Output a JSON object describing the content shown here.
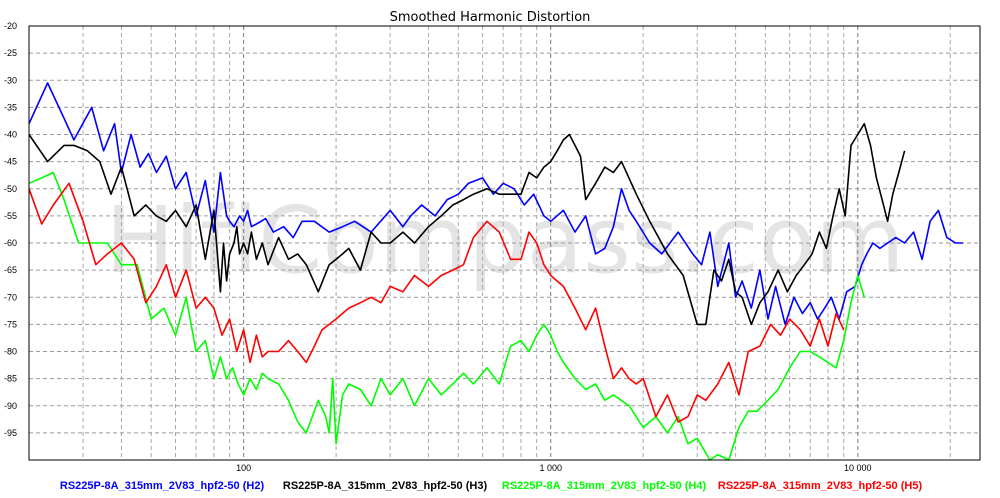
{
  "watermark": "HifiCompass.com",
  "chart_data": {
    "type": "line",
    "title": "Smoothed Harmonic Distortion",
    "xscale": "log",
    "xlim": [
      20,
      25000
    ],
    "ylim": [
      -100,
      -20
    ],
    "grid": true,
    "legend_position": "bottom",
    "x_tick_labels": [
      {
        "value": 100,
        "label": "100"
      },
      {
        "value": 1000,
        "label": "1 000"
      },
      {
        "value": 10000,
        "label": "10 000"
      }
    ],
    "y_tick_labels": [
      {
        "value": -20,
        "label": "-20"
      },
      {
        "value": -25,
        "label": "-25"
      },
      {
        "value": -30,
        "label": "-30"
      },
      {
        "value": -35,
        "label": "-35"
      },
      {
        "value": -40,
        "label": "-40"
      },
      {
        "value": -45,
        "label": "-45"
      },
      {
        "value": -50,
        "label": "-50"
      },
      {
        "value": -55,
        "label": "-55"
      },
      {
        "value": -60,
        "label": "-60"
      },
      {
        "value": -65,
        "label": "-65"
      },
      {
        "value": -70,
        "label": "-70"
      },
      {
        "value": -75,
        "label": "-75"
      },
      {
        "value": -80,
        "label": "-80"
      },
      {
        "value": -85,
        "label": "-85"
      },
      {
        "value": -90,
        "label": "-90"
      },
      {
        "value": -95,
        "label": "-95"
      }
    ],
    "series": [
      {
        "name": "RS225P-8A_315mm_2V83_hpf2-50 (H2)",
        "color": "#0000ff",
        "x": [
          20,
          23,
          26,
          28,
          32,
          35,
          38,
          40,
          43,
          46,
          49,
          52,
          56,
          60,
          65,
          70,
          75,
          80,
          84,
          88,
          90,
          93,
          97,
          100,
          103,
          106,
          110,
          118,
          125,
          135,
          145,
          155,
          170,
          190,
          210,
          230,
          260,
          300,
          330,
          350,
          380,
          420,
          460,
          500,
          540,
          600,
          650,
          700,
          760,
          820,
          880,
          950,
          1000,
          1100,
          1200,
          1300,
          1400,
          1500,
          1600,
          1700,
          1800,
          1900,
          2100,
          2300,
          2600,
          2900,
          3100,
          3300,
          3500,
          3800,
          4000,
          4200,
          4500,
          4800,
          5100,
          5400,
          5800,
          6200,
          6600,
          7000,
          7400,
          7800,
          8200,
          8700,
          9200,
          9800,
          10300,
          10700,
          11200,
          11800,
          12500,
          13300,
          14200,
          15200,
          16200,
          17200,
          18300,
          19500,
          20800,
          22000
        ],
        "y": [
          -38,
          -30.5,
          -37,
          -41,
          -35,
          -43,
          -38,
          -47,
          -40,
          -46,
          -43.5,
          -47,
          -44,
          -50,
          -47,
          -55,
          -48.5,
          -58,
          -47,
          -55,
          -56,
          -57,
          -55,
          -56,
          -54,
          -57,
          -56.5,
          -55.5,
          -58,
          -57,
          -59,
          -56,
          -56,
          -58,
          -57,
          -56,
          -58,
          -54,
          -57,
          -55,
          -53,
          -55,
          -52,
          -51,
          -49,
          -48,
          -51,
          -49,
          -50,
          -53,
          -51,
          -55,
          -56,
          -54,
          -58,
          -55,
          -62,
          -61,
          -57,
          -50,
          -54,
          -56,
          -60,
          -62,
          -58,
          -62,
          -64,
          -58,
          -68,
          -60,
          -70,
          -67,
          -72,
          -65,
          -74,
          -68,
          -75,
          -70,
          -73,
          -71,
          -74,
          -72,
          -70,
          -74,
          -69,
          -68,
          -64,
          -62,
          -60,
          -61,
          -60,
          -59,
          -60,
          -58,
          -63,
          -56,
          -54,
          -59,
          -60,
          -60
        ],
        "label_x": 162,
        "label_anchor": "middle"
      },
      {
        "name": "RS225P-8A_315mm_2V83_hpf2-50 (H3)",
        "color": "#000000",
        "x": [
          20,
          23,
          26,
          28,
          31,
          34,
          37,
          40,
          44,
          48,
          52,
          56,
          60,
          65,
          70,
          75,
          80,
          84,
          86,
          88,
          90,
          93,
          95,
          97,
          100,
          103,
          106,
          110,
          115,
          120,
          130,
          140,
          150,
          160,
          175,
          190,
          200,
          210,
          220,
          240,
          260,
          280,
          300,
          330,
          360,
          400,
          440,
          480,
          520,
          560,
          620,
          680,
          740,
          800,
          850,
          900,
          950,
          1000,
          1050,
          1100,
          1150,
          1200,
          1250,
          1300,
          1400,
          1500,
          1600,
          1700,
          1900,
          2100,
          2400,
          2700,
          3000,
          3200,
          3400,
          3600,
          3800,
          4000,
          4200,
          4500,
          4800,
          5100,
          5500,
          5900,
          6300,
          6700,
          7100,
          7500,
          7900,
          8300,
          8700,
          9100,
          9500,
          10000,
          10500,
          11000,
          11500,
          12000,
          12500,
          13000,
          13600,
          14200
        ],
        "y": [
          -40,
          -45,
          -42,
          -42,
          -43,
          -45,
          -51,
          -46,
          -55,
          -53,
          -55,
          -56,
          -54,
          -57,
          -53,
          -63,
          -54,
          -69,
          -60,
          -67,
          -62,
          -60,
          -57,
          -62,
          -60,
          -62,
          -58,
          -63,
          -60,
          -64,
          -59,
          -63,
          -62,
          -64,
          -69,
          -64,
          -63,
          -62,
          -61,
          -65,
          -58,
          -60,
          -60,
          -58,
          -60,
          -57,
          -55,
          -53,
          -52,
          -51,
          -50,
          -51,
          -51,
          -51,
          -47,
          -48,
          -46,
          -45,
          -43,
          -41,
          -40,
          -42,
          -44,
          -52,
          -49,
          -46,
          -47,
          -45,
          -51,
          -56,
          -62,
          -66,
          -75,
          -75,
          -65,
          -67,
          -63,
          -69,
          -70,
          -75,
          -71,
          -69,
          -65,
          -69,
          -66,
          -64,
          -62,
          -58,
          -61,
          -55,
          -50,
          -55,
          -42,
          -40,
          -38,
          -42,
          -48,
          -52,
          -56,
          -51,
          -47,
          -43
        ],
        "label_x": 385,
        "label_anchor": "middle"
      },
      {
        "name": "RS225P-8A_315mm_2V83_hpf2-50 (H4)",
        "color": "#00ff00",
        "x": [
          20,
          22,
          24,
          26,
          29,
          32,
          36,
          40,
          45,
          50,
          55,
          60,
          65,
          70,
          75,
          80,
          84,
          88,
          92,
          96,
          100,
          105,
          110,
          115,
          120,
          130,
          140,
          150,
          160,
          175,
          185,
          190,
          195,
          200,
          210,
          220,
          240,
          260,
          280,
          300,
          330,
          360,
          400,
          440,
          480,
          520,
          560,
          620,
          680,
          740,
          800,
          850,
          900,
          950,
          1000,
          1050,
          1100,
          1200,
          1300,
          1400,
          1500,
          1600,
          1800,
          2000,
          2200,
          2400,
          2600,
          2800,
          3000,
          3300,
          3500,
          3800,
          4100,
          4400,
          4700,
          5100,
          5500,
          6000,
          6500,
          7000,
          7500,
          8000,
          8500,
          9000,
          9500,
          10000,
          10500
        ],
        "y": [
          -49,
          -48,
          -47,
          -52,
          -60,
          -60,
          -60,
          -64,
          -64,
          -74,
          -72,
          -77,
          -70,
          -80,
          -78,
          -85,
          -81,
          -85,
          -83,
          -86,
          -88,
          -85,
          -87,
          -84,
          -85,
          -86,
          -89,
          -93,
          -95,
          -89,
          -92,
          -95,
          -85,
          -97,
          -88,
          -86,
          -87,
          -90,
          -85,
          -88,
          -85,
          -90,
          -85,
          -88,
          -86,
          -84,
          -86,
          -83,
          -86,
          -79,
          -78,
          -80,
          -77,
          -75,
          -77,
          -80,
          -82,
          -85,
          -87,
          -86,
          -89,
          -88,
          -90,
          -94,
          -92,
          -95,
          -92,
          -97,
          -96,
          -100,
          -99,
          -100,
          -94,
          -91,
          -91,
          -89,
          -87,
          -83,
          -80,
          -80,
          -81,
          -82,
          -83,
          -78,
          -71,
          -66,
          -70
        ],
        "label_x": 604,
        "label_anchor": "middle"
      },
      {
        "name": "RS225P-8A_315mm_2V83_hpf2-50 (H5)",
        "color": "#ff0000",
        "x": [
          20,
          22,
          24,
          27,
          30,
          33,
          36,
          40,
          44,
          48,
          52,
          56,
          60,
          65,
          70,
          75,
          80,
          85,
          90,
          95,
          100,
          105,
          110,
          115,
          120,
          130,
          140,
          150,
          160,
          170,
          180,
          190,
          200,
          220,
          240,
          260,
          280,
          300,
          330,
          360,
          400,
          440,
          480,
          520,
          560,
          620,
          680,
          740,
          800,
          850,
          900,
          950,
          1000,
          1100,
          1200,
          1300,
          1400,
          1500,
          1600,
          1700,
          1800,
          1900,
          2000,
          2200,
          2400,
          2600,
          2800,
          3000,
          3200,
          3500,
          3800,
          4100,
          4400,
          4800,
          5200,
          5600,
          6000,
          6500,
          7000,
          7500,
          8000,
          8500,
          9000
        ],
        "y": [
          -50,
          -56.5,
          -53,
          -49,
          -56,
          -64,
          -62,
          -60,
          -63,
          -71,
          -68,
          -64,
          -70,
          -65,
          -72,
          -70,
          -72,
          -77,
          -74,
          -80,
          -76,
          -82,
          -77,
          -81,
          -80,
          -80,
          -78,
          -80,
          -82,
          -79,
          -76,
          -75,
          -74,
          -72,
          -71,
          -70,
          -71,
          -68,
          -69,
          -66,
          -68,
          -66,
          -65,
          -64,
          -59,
          -56,
          -58,
          -63,
          -63,
          -58,
          -60,
          -64,
          -66,
          -68,
          -72,
          -76,
          -72,
          -79,
          -85,
          -83,
          -85,
          -86,
          -85,
          -92,
          -88,
          -93,
          -92,
          -88,
          -89,
          -86,
          -82,
          -88,
          -80,
          -79,
          -75,
          -77,
          -74,
          -76,
          -79,
          -74,
          -79,
          -73,
          -76
        ],
        "label_x": 820,
        "label_anchor": "middle"
      }
    ]
  }
}
